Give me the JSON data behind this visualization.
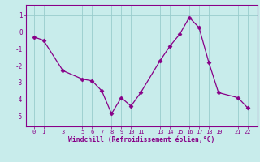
{
  "x": [
    0,
    1,
    3,
    5,
    6,
    7,
    8,
    9,
    10,
    11,
    13,
    14,
    15,
    16,
    17,
    18,
    19,
    21,
    22
  ],
  "y": [
    -0.3,
    -0.5,
    -2.3,
    -2.8,
    -2.9,
    -3.5,
    -4.85,
    -3.9,
    -4.4,
    -3.6,
    -1.7,
    -0.85,
    -0.15,
    0.85,
    0.25,
    -1.8,
    -3.6,
    -3.9,
    -4.5
  ],
  "line_color": "#880088",
  "marker_color": "#880088",
  "bg_color": "#c8eceb",
  "grid_color": "#99cccc",
  "xlabel": "Windchill (Refroidissement éolien,°C)",
  "xticks": [
    0,
    1,
    3,
    5,
    6,
    7,
    8,
    9,
    10,
    11,
    13,
    14,
    15,
    16,
    17,
    18,
    19,
    21,
    22
  ],
  "yticks": [
    -5,
    -4,
    -3,
    -2,
    -1,
    0,
    1
  ],
  "ylim": [
    -5.6,
    1.6
  ],
  "xlim": [
    -0.8,
    23.0
  ]
}
